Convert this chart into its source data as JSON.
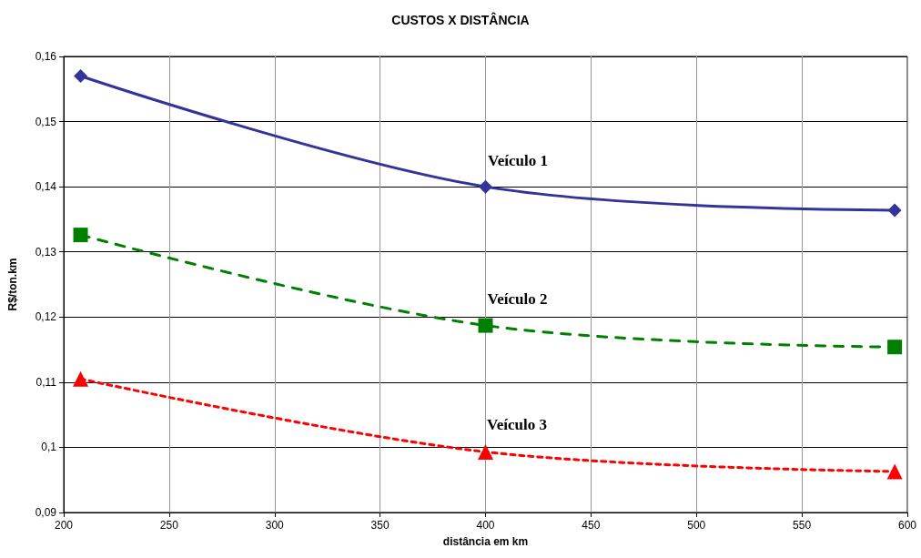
{
  "chart_data": {
    "type": "line",
    "title": "CUSTOS X DISTÂNCIA",
    "xlabel": "distância em km",
    "ylabel": "R$/ton.km",
    "x": [
      208,
      400,
      594
    ],
    "series": [
      {
        "name": "Veículo 1",
        "color": "#333399",
        "values": [
          0.157,
          0.14,
          0.1364
        ],
        "marker": "diamond",
        "line_style": "solid"
      },
      {
        "name": "Veículo 2",
        "color": "#008000",
        "values": [
          0.1326,
          0.1187,
          0.1154
        ],
        "marker": "square",
        "line_style": "dashed"
      },
      {
        "name": "Veículo 3",
        "color": "#ff0000",
        "values": [
          0.1105,
          0.0993,
          0.0963
        ],
        "marker": "triangle",
        "line_style": "dotted"
      }
    ],
    "xlim": [
      200,
      600
    ],
    "xticks": [
      200,
      250,
      300,
      350,
      400,
      450,
      500,
      550,
      600
    ],
    "ylim": [
      0.09,
      0.16
    ],
    "yticks": [
      {
        "value": 0.09,
        "label": "0,09"
      },
      {
        "value": 0.1,
        "label": "0,1"
      },
      {
        "value": 0.11,
        "label": "0,11"
      },
      {
        "value": 0.12,
        "label": "0,12"
      },
      {
        "value": 0.13,
        "label": "0,13"
      },
      {
        "value": 0.14,
        "label": "0,14"
      },
      {
        "value": 0.15,
        "label": "0,15"
      },
      {
        "value": 0.16,
        "label": "0,16"
      }
    ],
    "grid": true
  }
}
